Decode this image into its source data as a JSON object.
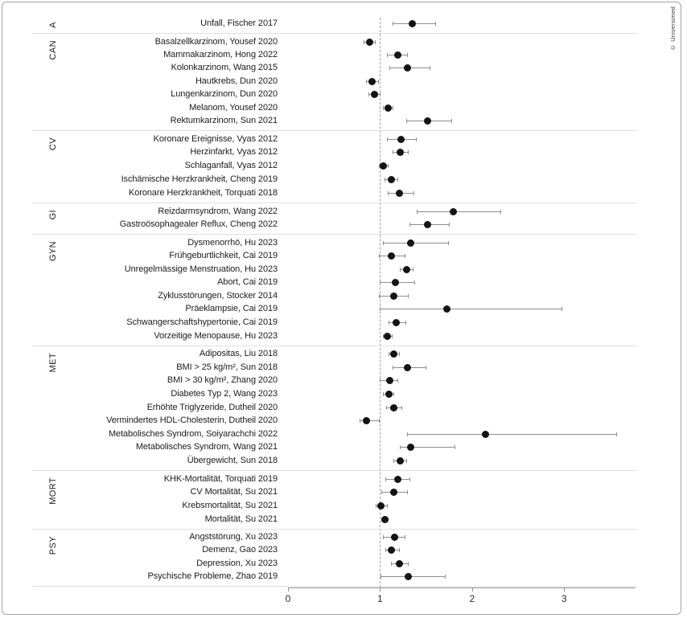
{
  "credit": "© Universimed",
  "chart_data": {
    "type": "scatter",
    "subtype": "forest-plot",
    "title": "",
    "xlabel": "",
    "ylabel": "",
    "x_axis": {
      "ticks": [
        0,
        1,
        2,
        3
      ],
      "min": 0,
      "max": 3.78
    },
    "reference_line_x": 1,
    "grid": false,
    "legend": "none",
    "point_color": "#141414",
    "ci_color": "#8e8e8e",
    "sections": [
      {
        "code": "A",
        "rows": [
          {
            "label": "Unfall, Fischer 2017",
            "value": 1.35,
            "ci_low": 1.14,
            "ci_high": 1.6
          }
        ]
      },
      {
        "code": "CAN",
        "rows": [
          {
            "label": "Basalzellkarzinom, Yousef 2020",
            "value": 0.89,
            "ci_low": 0.83,
            "ci_high": 0.95
          },
          {
            "label": "Mammakarzinom, Hong 2022",
            "value": 1.19,
            "ci_low": 1.08,
            "ci_high": 1.3
          },
          {
            "label": "Kolonkarzinom, Wang 2015",
            "value": 1.3,
            "ci_low": 1.11,
            "ci_high": 1.54
          },
          {
            "label": "Hautkrebs, Dun 2020",
            "value": 0.91,
            "ci_low": 0.85,
            "ci_high": 0.98
          },
          {
            "label": "Lungenkarzinom, Dun 2020",
            "value": 0.94,
            "ci_low": 0.88,
            "ci_high": 1.0
          },
          {
            "label": "Melanom, Yousef 2020",
            "value": 1.09,
            "ci_low": 1.04,
            "ci_high": 1.14
          },
          {
            "label": "Rektumkarzinom, Sun 2021",
            "value": 1.52,
            "ci_low": 1.29,
            "ci_high": 1.78
          }
        ]
      },
      {
        "code": "CV",
        "rows": [
          {
            "label": "Koronare Ereignisse, Vyas 2012",
            "value": 1.23,
            "ci_low": 1.08,
            "ci_high": 1.39
          },
          {
            "label": "Herzinfarkt, Vyas 2012",
            "value": 1.22,
            "ci_low": 1.14,
            "ci_high": 1.31
          },
          {
            "label": "Schlaganfall, Vyas 2012",
            "value": 1.04,
            "ci_low": 0.99,
            "ci_high": 1.09
          },
          {
            "label": "Ischämische Herzkrankheit, Cheng 2019",
            "value": 1.12,
            "ci_low": 1.05,
            "ci_high": 1.19
          },
          {
            "label": "Koronare Herzkrankheit, Torquati 2018",
            "value": 1.21,
            "ci_low": 1.09,
            "ci_high": 1.37
          }
        ]
      },
      {
        "code": "GI",
        "rows": [
          {
            "label": "Reizdarmsyndrom, Wang 2022",
            "value": 1.8,
            "ci_low": 1.4,
            "ci_high": 2.31
          },
          {
            "label": "Gastroösophagealer Reflux, Cheng 2022",
            "value": 1.52,
            "ci_low": 1.32,
            "ci_high": 1.75
          }
        ]
      },
      {
        "code": "GYN",
        "rows": [
          {
            "label": "Dysmenorrhö, Hu 2023",
            "value": 1.33,
            "ci_low": 1.04,
            "ci_high": 1.74
          },
          {
            "label": "Frühgeburtlichkeit, Cai 2019",
            "value": 1.12,
            "ci_low": 0.99,
            "ci_high": 1.27
          },
          {
            "label": "Unregelmässige Menstruation, Hu 2023",
            "value": 1.29,
            "ci_low": 1.22,
            "ci_high": 1.36
          },
          {
            "label": "Abort, Cai 2019",
            "value": 1.17,
            "ci_low": 1.0,
            "ci_high": 1.38
          },
          {
            "label": "Zyklusstörungen, Stocker 2014",
            "value": 1.15,
            "ci_low": 0.99,
            "ci_high": 1.31
          },
          {
            "label": "Präeklampsie, Cai 2019",
            "value": 1.73,
            "ci_low": 1.0,
            "ci_high": 2.98
          },
          {
            "label": "Schwangerschaftshypertonie, Cai 2019",
            "value": 1.18,
            "ci_low": 1.1,
            "ci_high": 1.28
          },
          {
            "label": "Vorzeitige Menopause, Hu 2023",
            "value": 1.08,
            "ci_low": 1.04,
            "ci_high": 1.13
          }
        ]
      },
      {
        "code": "MET",
        "rows": [
          {
            "label": "Adipositas, Liu 2018",
            "value": 1.15,
            "ci_low": 1.1,
            "ci_high": 1.21
          },
          {
            "label": "BMI > 25 kg/m², Sun 2018",
            "value": 1.3,
            "ci_low": 1.14,
            "ci_high": 1.5
          },
          {
            "label": "BMI > 30 kg/m², Zhang 2020",
            "value": 1.11,
            "ci_low": 1.0,
            "ci_high": 1.19
          },
          {
            "label": "Diabetes Typ 2, Wang 2023",
            "value": 1.1,
            "ci_low": 1.04,
            "ci_high": 1.15
          },
          {
            "label": "Erhöhte Triglyzeride, Dutheil 2020",
            "value": 1.15,
            "ci_low": 1.07,
            "ci_high": 1.24
          },
          {
            "label": "Vermindertes HDL-Cholesterin, Dutheil 2020",
            "value": 0.85,
            "ci_low": 0.78,
            "ci_high": 0.99
          },
          {
            "label": "Metabolisches Syndrom, Soiyarachchi 2022",
            "value": 2.15,
            "ci_low": 1.3,
            "ci_high": 3.57
          },
          {
            "label": "Metabolisches Syndrom, Wang 2021",
            "value": 1.33,
            "ci_low": 1.22,
            "ci_high": 1.81
          },
          {
            "label": "Übergewicht, Sun 2018",
            "value": 1.22,
            "ci_low": 1.15,
            "ci_high": 1.29
          }
        ]
      },
      {
        "code": "MORT",
        "rows": [
          {
            "label": "KHK-Mortalität, Torquati 2019",
            "value": 1.19,
            "ci_low": 1.06,
            "ci_high": 1.32
          },
          {
            "label": "CV Mortalität, Su 2021",
            "value": 1.15,
            "ci_low": 1.02,
            "ci_high": 1.3
          },
          {
            "label": "Krebsmortalität, Su 2021",
            "value": 1.01,
            "ci_low": 0.96,
            "ci_high": 1.08
          },
          {
            "label": "Mortalität, Su 2021",
            "value": 1.05,
            "ci_low": 1.02,
            "ci_high": 1.09
          }
        ]
      },
      {
        "code": "PSY",
        "rows": [
          {
            "label": "Angststörung, Xu 2023",
            "value": 1.16,
            "ci_low": 1.04,
            "ci_high": 1.27
          },
          {
            "label": "Demenz, Gao 2023",
            "value": 1.12,
            "ci_low": 1.06,
            "ci_high": 1.21
          },
          {
            "label": "Depression, Xu 2023",
            "value": 1.21,
            "ci_low": 1.12,
            "ci_high": 1.31
          },
          {
            "label": "Psychische Probleme, Zhao 2019",
            "value": 1.31,
            "ci_low": 1.01,
            "ci_high": 1.71
          }
        ]
      }
    ]
  }
}
